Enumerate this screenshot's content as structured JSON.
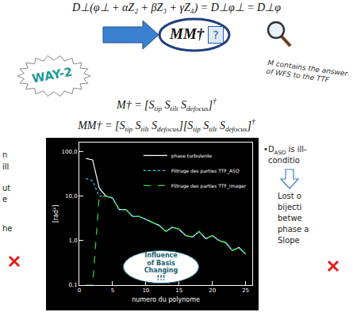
{
  "slide": {
    "top_equation": "D⊥(φ⊥ + αZ₂ + βZ₃ + γZ₄) = D⊥φ⊥ = D⊥φ",
    "oval": {
      "text": "MM†",
      "box": "?"
    },
    "badge": "WAY-2",
    "note_lines": [
      "M contains the answer",
      "of WFS to the TTF"
    ],
    "equation_1": {
      "lhs": "M†",
      "relation": "=",
      "groups": [
        {
          "open": "[",
          "symbol": "S",
          "subscripts": [
            "tip",
            "tilt",
            "defocus"
          ],
          "close": "]",
          "exponent": "†"
        }
      ]
    },
    "equation_2": {
      "lhs": "MM†",
      "relation": "=",
      "groups": [
        {
          "open": "[",
          "symbol": "S",
          "subscripts": [
            "tip",
            "tilt",
            "defocus"
          ],
          "close": "]"
        },
        {
          "open": "[",
          "symbol": "S",
          "subscripts": [
            "tip",
            "tilt",
            "defocus"
          ],
          "close": "]",
          "exponent": "†"
        }
      ]
    },
    "left_fragments": [
      "n",
      "ill",
      "ut",
      "e",
      "he"
    ],
    "right_heading": {
      "bullet": "•",
      "symbol": "D",
      "subscript": "ASO",
      "lines": [
        "is ill-",
        "conditio"
      ]
    },
    "right_lines": [
      "Lost o",
      "bijecti",
      "betwe",
      "phase a",
      "Slope"
    ],
    "callout": [
      "Influence",
      "of Basis",
      "Changing",
      "!!!"
    ]
  },
  "chart_data": {
    "type": "line",
    "x_label": "numero du polynome",
    "y_label": "[rad²]",
    "log": "y",
    "grid": false,
    "legend": "top-right",
    "xlim": [
      0,
      26
    ],
    "xticks": [
      0,
      5,
      10,
      15,
      20,
      25
    ],
    "ylim": [
      0.1,
      160
    ],
    "yticks": [
      {
        "value": 0.1,
        "label": "0,1"
      },
      {
        "value": 1,
        "label": "1,0"
      },
      {
        "value": 10,
        "label": "10,0"
      },
      {
        "value": 100,
        "label": "100,0"
      }
    ],
    "x": [
      1,
      2,
      3,
      4,
      5,
      6,
      7,
      8,
      9,
      10,
      11,
      12,
      13,
      14,
      15,
      16,
      17,
      18,
      19,
      20,
      21,
      22,
      23,
      24,
      25
    ],
    "series": [
      {
        "name": "phase turbulente",
        "color": "#ffffff",
        "line_style": "solid",
        "values": [
          70,
          65,
          15,
          10,
          9,
          5,
          5,
          3.5,
          3.5,
          3,
          2.5,
          2.2,
          1.6,
          2,
          1.8,
          1.3,
          1.2,
          1.6,
          1.1,
          1.3,
          1.0,
          0.9,
          0.6,
          0.7,
          0.5
        ]
      },
      {
        "name": "Filtrage des parties TTF_ASO",
        "color": "#00e5ff",
        "line_style": "dotted",
        "values": [
          25,
          22,
          10,
          10,
          9,
          5,
          5,
          3.5,
          3.5,
          3,
          2.5,
          2.2,
          1.6,
          2,
          1.8,
          1.3,
          1.2,
          1.6,
          1.1,
          1.3,
          1.0,
          0.9,
          0.6,
          0.7,
          0.5
        ]
      },
      {
        "name": "Filtrage des parties TTF_imager",
        "color": "#33dd33",
        "line_style": "dashed",
        "values": [
          0.1,
          0.1,
          10,
          10,
          9,
          5,
          5,
          3.5,
          3.5,
          3,
          2.5,
          2.2,
          1.6,
          2,
          1.8,
          1.3,
          1.2,
          1.6,
          1.1,
          1.3,
          1.0,
          0.9,
          0.6,
          0.7,
          0.5
        ]
      }
    ]
  }
}
